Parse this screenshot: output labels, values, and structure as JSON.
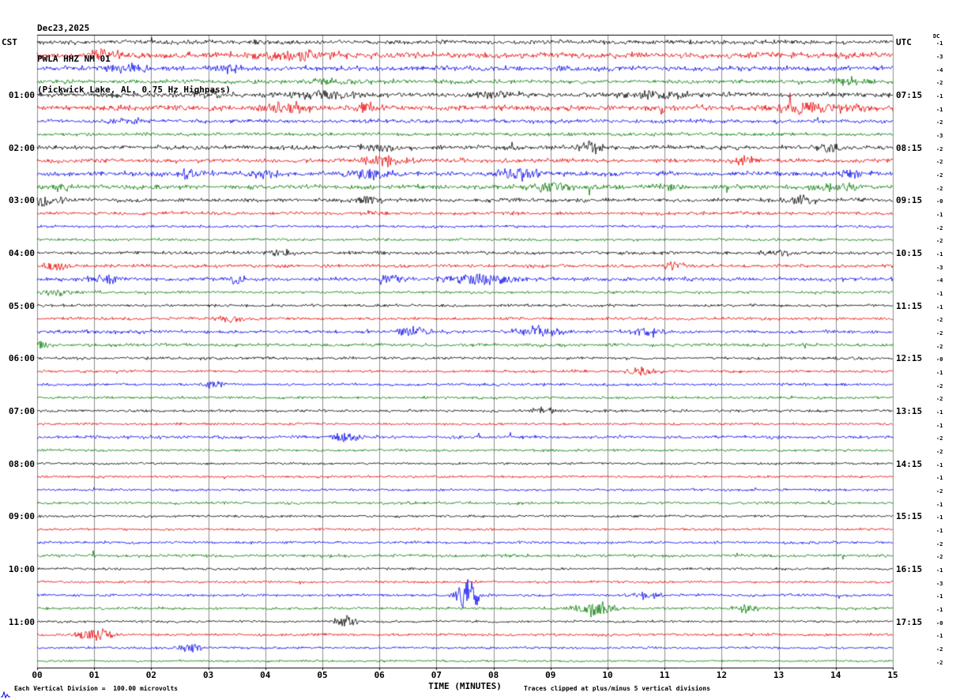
{
  "header": {
    "date": "Dec23,2025",
    "station": "PWLA HHZ NM 01",
    "filter": "(Pickwick Lake, AL, 0.75 Hz Highpass)"
  },
  "axes": {
    "left_corner": "CST",
    "right_corner": "UTC",
    "x_title": "TIME (MINUTES)",
    "left_times": [
      "01:00",
      "02:00",
      "03:00",
      "04:00",
      "05:00",
      "06:00",
      "07:00",
      "08:00",
      "09:00",
      "10:00",
      "11:00"
    ],
    "right_times": [
      "07:15",
      "08:15",
      "09:15",
      "10:15",
      "11:15",
      "12:15",
      "13:15",
      "14:15",
      "15:15",
      "16:15",
      "17:15"
    ],
    "x_ticks": [
      "00",
      "01",
      "02",
      "03",
      "04",
      "05",
      "06",
      "07",
      "08",
      "09",
      "10",
      "11",
      "12",
      "13",
      "14",
      "15"
    ]
  },
  "footer": {
    "left": "Each Vertical Division =  100.00 microvolts",
    "right": "Traces clipped at plus/minus 5 vertical divisions"
  },
  "chart_data": {
    "type": "line",
    "subtype": "helicorder-seismogram",
    "minutes_per_line": 15,
    "lines": 48,
    "x_range_minutes": [
      0,
      15
    ],
    "trace_colors": [
      "#000000",
      "#e60000",
      "#0000ee",
      "#007a00"
    ],
    "grid_color": "#8c8c8c",
    "microvolts_per_division": 100,
    "clip_divisions": 5,
    "dc_label": "DC",
    "rows": {
      "cst_start": [
        "00:00",
        "00:15",
        "00:30",
        "00:45",
        "01:00",
        "01:15",
        "01:30",
        "01:45",
        "02:00",
        "02:15",
        "02:30",
        "02:45",
        "03:00",
        "03:15",
        "03:30",
        "03:45",
        "04:00",
        "04:15",
        "04:30",
        "04:45",
        "05:00",
        "05:15",
        "05:30",
        "05:45",
        "06:00",
        "06:15",
        "06:30",
        "06:45",
        "07:00",
        "07:15",
        "07:30",
        "07:45",
        "08:00",
        "08:15",
        "08:30",
        "08:45",
        "09:00",
        "09:15",
        "09:30",
        "09:45",
        "10:00",
        "10:15",
        "10:30",
        "10:45",
        "11:00",
        "11:15",
        "11:30",
        "11:45"
      ],
      "noise_level": [
        1.6,
        2.2,
        1.8,
        1.5,
        1.8,
        2.0,
        1.4,
        1.2,
        1.6,
        1.5,
        1.7,
        1.6,
        1.4,
        1.2,
        1.0,
        1.0,
        1.2,
        1.3,
        1.4,
        1.0,
        1.0,
        1.1,
        1.3,
        1.2,
        1.1,
        1.0,
        1.0,
        1.0,
        1.0,
        0.9,
        1.2,
        0.9,
        0.9,
        0.9,
        0.9,
        1.0,
        0.9,
        0.9,
        1.0,
        1.1,
        0.9,
        0.9,
        1.0,
        1.0,
        0.9,
        1.0,
        0.9,
        0.8
      ],
      "dc": [
        "-1",
        "-3",
        "-4",
        "-2",
        "-1",
        "-1",
        "-2",
        "-3",
        "-2",
        "-2",
        "-2",
        "-2",
        "-0",
        "-1",
        "-2",
        "-2",
        "-1",
        "-3",
        "-4",
        "-1",
        "-1",
        "-2",
        "-2",
        "-2",
        "-0",
        "-1",
        "-2",
        "-2",
        "-1",
        "-1",
        "-2",
        "-2",
        "-1",
        "-1",
        "-2",
        "-1",
        "-1",
        "-1",
        "-2",
        "-2",
        "-1",
        "-3",
        "-1",
        "-1",
        "-0",
        "-1",
        "-2",
        "-2"
      ]
    },
    "events_format": "[row_index, minute, width_minutes, relative_amplitude]",
    "events": [
      [
        1,
        1.3,
        0.3,
        0.3
      ],
      [
        1,
        4.6,
        0.6,
        0.28
      ],
      [
        2,
        1.6,
        0.25,
        0.32
      ],
      [
        2,
        3.4,
        0.2,
        0.28
      ],
      [
        3,
        5.2,
        0.4,
        0.18
      ],
      [
        3,
        14.2,
        0.3,
        0.22
      ],
      [
        4,
        3.1,
        0.2,
        0.28
      ],
      [
        4,
        5.0,
        0.5,
        0.28
      ],
      [
        4,
        8.0,
        0.3,
        0.22
      ],
      [
        4,
        10.8,
        0.4,
        0.28
      ],
      [
        5,
        4.3,
        0.3,
        0.42
      ],
      [
        5,
        5.8,
        0.15,
        0.33
      ],
      [
        5,
        11.0,
        0.2,
        0.28
      ],
      [
        5,
        13.6,
        0.6,
        0.33
      ],
      [
        6,
        1.6,
        0.3,
        0.22
      ],
      [
        8,
        6.0,
        0.3,
        0.22
      ],
      [
        8,
        9.7,
        0.2,
        0.38
      ],
      [
        8,
        13.9,
        0.15,
        0.33
      ],
      [
        9,
        6.1,
        0.3,
        0.38
      ],
      [
        9,
        12.4,
        0.15,
        0.32
      ],
      [
        10,
        2.7,
        0.2,
        0.33
      ],
      [
        10,
        4.0,
        0.2,
        0.27
      ],
      [
        10,
        5.8,
        0.3,
        0.38
      ],
      [
        10,
        8.4,
        0.3,
        0.42
      ],
      [
        10,
        14.3,
        0.2,
        0.28
      ],
      [
        11,
        0.5,
        0.15,
        0.28
      ],
      [
        11,
        9.0,
        0.3,
        0.33
      ],
      [
        11,
        11.0,
        0.2,
        0.23
      ],
      [
        11,
        14.0,
        0.3,
        0.28
      ],
      [
        12,
        0.15,
        0.2,
        0.42
      ],
      [
        12,
        5.8,
        0.2,
        0.28
      ],
      [
        12,
        13.4,
        0.2,
        0.28
      ],
      [
        13,
        6.0,
        0.2,
        0.18
      ],
      [
        16,
        4.3,
        0.2,
        0.28
      ],
      [
        16,
        13.0,
        0.3,
        0.18
      ],
      [
        17,
        0.3,
        0.15,
        0.28
      ],
      [
        17,
        11.2,
        0.2,
        0.28
      ],
      [
        18,
        1.2,
        0.2,
        0.33
      ],
      [
        18,
        3.5,
        0.2,
        0.28
      ],
      [
        18,
        6.2,
        0.2,
        0.28
      ],
      [
        18,
        7.8,
        0.5,
        0.33
      ],
      [
        19,
        0.3,
        0.2,
        0.22
      ],
      [
        21,
        3.4,
        0.2,
        0.28
      ],
      [
        22,
        6.6,
        0.2,
        0.33
      ],
      [
        22,
        8.8,
        0.3,
        0.38
      ],
      [
        22,
        10.7,
        0.2,
        0.28
      ],
      [
        23,
        0.1,
        0.1,
        0.33
      ],
      [
        25,
        10.6,
        0.2,
        0.28
      ],
      [
        26,
        3.1,
        0.15,
        0.28
      ],
      [
        28,
        8.9,
        0.15,
        0.28
      ],
      [
        30,
        5.4,
        0.2,
        0.33
      ],
      [
        42,
        7.55,
        0.15,
        1.1
      ],
      [
        42,
        10.7,
        0.2,
        0.22
      ],
      [
        43,
        9.75,
        0.25,
        0.5
      ],
      [
        43,
        12.4,
        0.15,
        0.32
      ],
      [
        44,
        5.4,
        0.15,
        0.38
      ],
      [
        45,
        1.0,
        0.25,
        0.38
      ],
      [
        46,
        2.7,
        0.15,
        0.33
      ]
    ]
  }
}
